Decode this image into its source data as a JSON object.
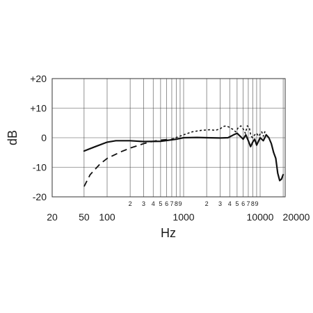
{
  "chart_data": {
    "type": "line",
    "title": "",
    "xlabel": "Hz",
    "ylabel": "dB",
    "x_scale": "log",
    "xlim": [
      20,
      20000
    ],
    "ylim": [
      -20,
      20
    ],
    "grid": true,
    "yticks": [
      {
        "value": 20,
        "label": "+20"
      },
      {
        "value": 10,
        "label": "+10"
      },
      {
        "value": 0,
        "label": "0"
      },
      {
        "value": -10,
        "label": "-10"
      },
      {
        "value": -20,
        "label": "-20"
      }
    ],
    "xticks_major": [
      {
        "value": 20,
        "label": "20"
      },
      {
        "value": 50,
        "label": "50"
      },
      {
        "value": 100,
        "label": "100"
      },
      {
        "value": 1000,
        "label": "1000"
      },
      {
        "value": 10000,
        "label": "10000"
      },
      {
        "value": 20000,
        "label": "20000"
      }
    ],
    "xticks_minor": [
      {
        "value": 200,
        "label": "2"
      },
      {
        "value": 300,
        "label": "3"
      },
      {
        "value": 400,
        "label": "4"
      },
      {
        "value": 500,
        "label": "5"
      },
      {
        "value": 600,
        "label": "6"
      },
      {
        "value": 700,
        "label": "7"
      },
      {
        "value": 800,
        "label": "8"
      },
      {
        "value": 900,
        "label": "9"
      },
      {
        "value": 2000,
        "label": "2"
      },
      {
        "value": 3000,
        "label": "3"
      },
      {
        "value": 4000,
        "label": "4"
      },
      {
        "value": 5000,
        "label": "5"
      },
      {
        "value": 6000,
        "label": "6"
      },
      {
        "value": 7000,
        "label": "7"
      },
      {
        "value": 8000,
        "label": "8"
      },
      {
        "value": 9000,
        "label": "9"
      }
    ],
    "series": [
      {
        "style": "solid",
        "color": "#111111",
        "x": [
          50,
          70,
          100,
          130,
          200,
          300,
          500,
          800,
          1000,
          1500,
          2000,
          3000,
          3800,
          4500,
          5000,
          5500,
          6000,
          6500,
          7000,
          7500,
          8000,
          8500,
          9000,
          10000,
          11000,
          12000,
          13000,
          14000,
          15000,
          16000,
          17000,
          18000,
          19000,
          20000
        ],
        "y": [
          -4.5,
          -3,
          -1.5,
          -1,
          -1,
          -1.3,
          -1.2,
          -0.5,
          0,
          0.1,
          0,
          -0.1,
          0,
          1,
          1.5,
          0.5,
          -0.5,
          1,
          -1,
          -3,
          -1.5,
          -0.5,
          -2.5,
          0,
          -1,
          1,
          0,
          -2,
          -5,
          -7,
          -12,
          -14.5,
          -14,
          -12.5
        ]
      },
      {
        "style": "dashed",
        "color": "#111111",
        "x": [
          50,
          60,
          80,
          100,
          150,
          200,
          300,
          400,
          500,
          700
        ],
        "y": [
          -16.5,
          -12.5,
          -9,
          -7,
          -4.8,
          -3.5,
          -2,
          -1.2,
          -0.8,
          -0.5
        ]
      },
      {
        "style": "dotted",
        "color": "#111111",
        "x": [
          700,
          1000,
          1300,
          1700,
          2200,
          2600,
          3000,
          3300,
          3600,
          4000,
          4400,
          4800,
          5200,
          5600,
          6000,
          6400,
          6800,
          7200,
          7600,
          8000,
          8500,
          9000,
          9500,
          10000,
          10500,
          11000,
          11500,
          12000,
          12500
        ],
        "y": [
          -0.5,
          1,
          2,
          2.5,
          2.7,
          2.5,
          3,
          3.8,
          4,
          3.5,
          2.8,
          2,
          3.5,
          4,
          3,
          1.5,
          4,
          3.5,
          0.5,
          0,
          1,
          1.5,
          0.5,
          1.2,
          2,
          0.5,
          2,
          1,
          0
        ]
      }
    ]
  }
}
